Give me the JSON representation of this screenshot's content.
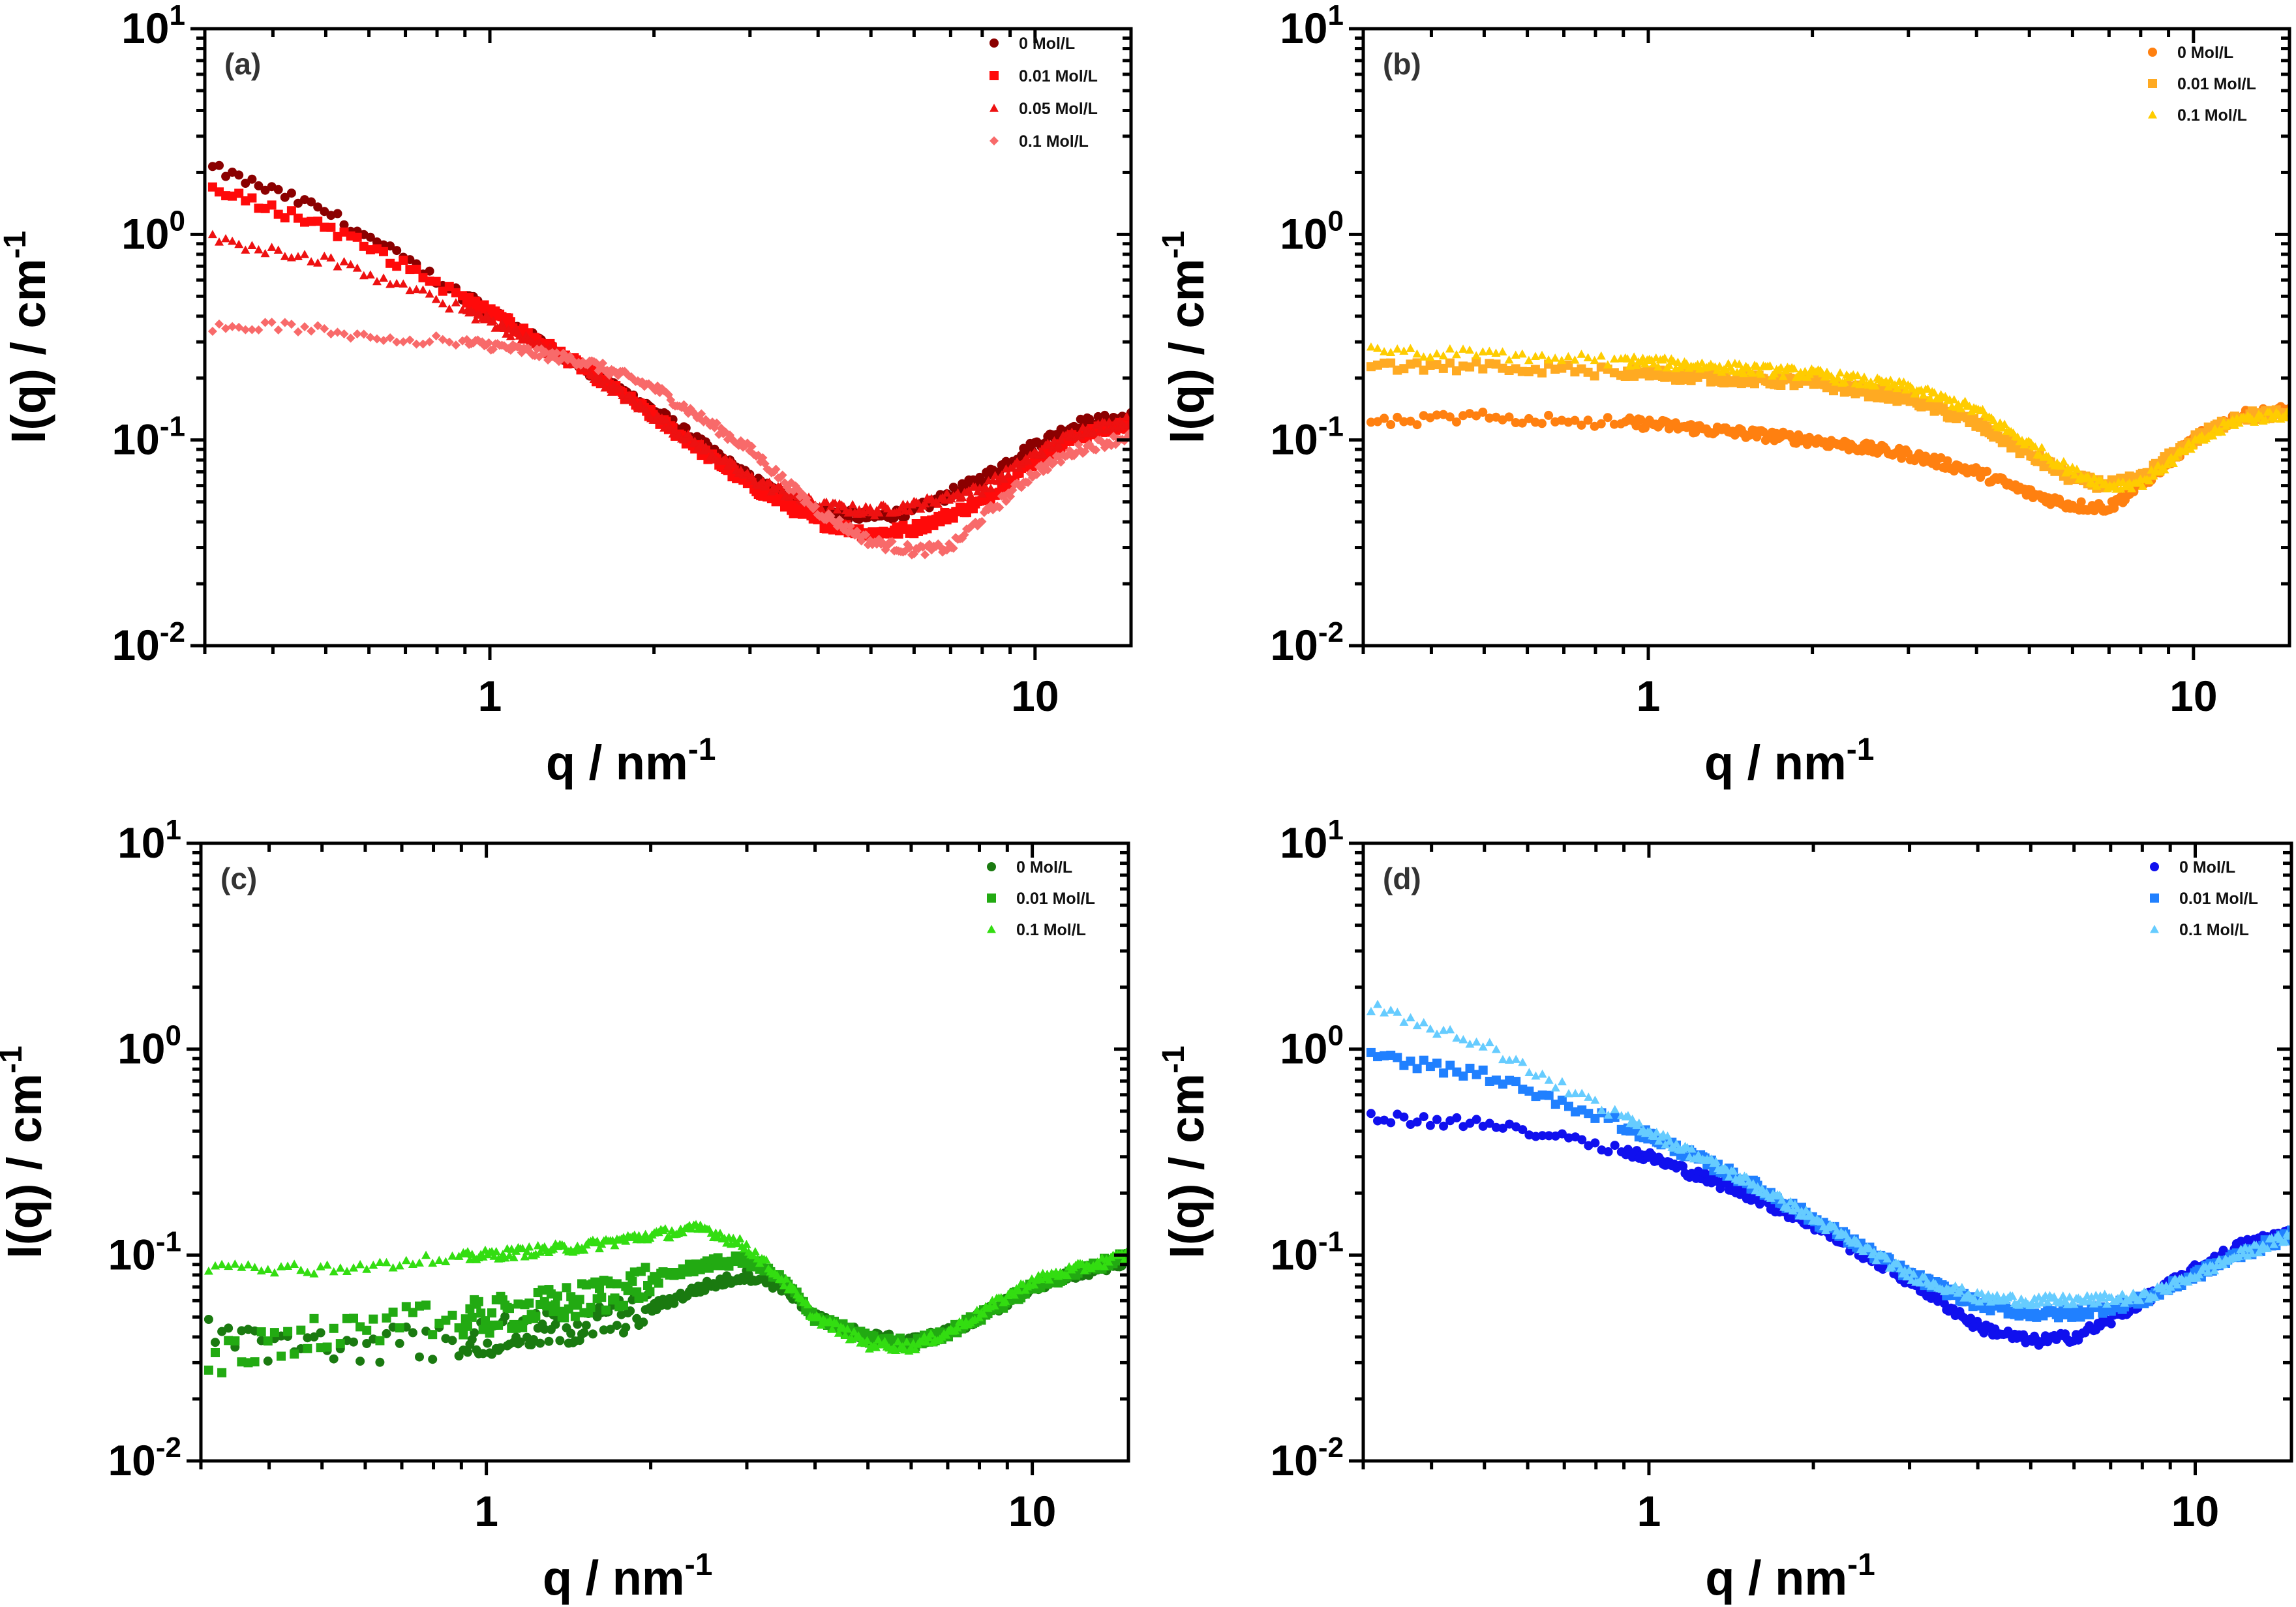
{
  "chart_data": [
    {
      "type": "scatter",
      "panel_label": "(a)",
      "xlabel": "q / nm",
      "xlabel_sup": "-1",
      "ylabel": "I(q) / cm",
      "ylabel_sup": "-1",
      "xscale": "log",
      "yscale": "log",
      "xlim": [
        0.3,
        15
      ],
      "ylim": [
        0.01,
        10
      ],
      "xticks": [
        {
          "value": 1,
          "label": "1"
        },
        {
          "value": 10,
          "label": "10"
        }
      ],
      "yticks": [
        {
          "value": 10,
          "base": "10",
          "exp": "1"
        },
        {
          "value": 1,
          "base": "10",
          "exp": "0"
        },
        {
          "value": 0.1,
          "base": "10",
          "exp": "-1"
        },
        {
          "value": 0.01,
          "base": "10",
          "exp": "-2"
        }
      ],
      "legend_position": "top-right",
      "series": [
        {
          "name": "0 Mol/L",
          "marker": "circle",
          "color": "#8b0000",
          "q": [
            0.31,
            0.5,
            0.7,
            1.0,
            1.5,
            2,
            3,
            4,
            5,
            6,
            8,
            10,
            12,
            15
          ],
          "I": [
            2.1,
            1.3,
            0.75,
            0.42,
            0.22,
            0.14,
            0.065,
            0.045,
            0.042,
            0.045,
            0.065,
            0.095,
            0.12,
            0.13
          ]
        },
        {
          "name": "0.01 Mol/L",
          "marker": "square",
          "color": "#ff0a0a",
          "q": [
            0.31,
            0.5,
            0.7,
            1.0,
            1.5,
            2,
            3,
            4,
            5,
            6,
            8,
            10,
            12,
            15
          ],
          "I": [
            1.65,
            1.1,
            0.7,
            0.42,
            0.22,
            0.13,
            0.06,
            0.04,
            0.035,
            0.037,
            0.05,
            0.08,
            0.105,
            0.12
          ]
        },
        {
          "name": "0.05 Mol/L",
          "marker": "triangle",
          "color": "#ee1111",
          "q": [
            0.31,
            0.5,
            0.7,
            1.0,
            1.5,
            2,
            3,
            4,
            5,
            6,
            8,
            10,
            12,
            15
          ],
          "I": [
            0.95,
            0.75,
            0.55,
            0.38,
            0.22,
            0.13,
            0.065,
            0.048,
            0.045,
            0.048,
            0.058,
            0.085,
            0.11,
            0.125
          ]
        },
        {
          "name": "0.1 Mol/L",
          "marker": "diamond",
          "color": "#f86a6a",
          "q": [
            0.31,
            0.4,
            0.6,
            1.0,
            1.5,
            2,
            3,
            4,
            5,
            6,
            7,
            8,
            10,
            12,
            15
          ],
          "I": [
            0.35,
            0.36,
            0.32,
            0.29,
            0.24,
            0.18,
            0.09,
            0.045,
            0.032,
            0.029,
            0.03,
            0.042,
            0.07,
            0.09,
            0.105
          ]
        }
      ]
    },
    {
      "type": "scatter",
      "panel_label": "(b)",
      "xlabel": "q / nm",
      "xlabel_sup": "-1",
      "ylabel": "I(q) / cm",
      "ylabel_sup": "-1",
      "xscale": "log",
      "yscale": "log",
      "xlim": [
        0.3,
        15
      ],
      "ylim": [
        0.01,
        10
      ],
      "xticks": [
        {
          "value": 1,
          "label": "1"
        },
        {
          "value": 10,
          "label": "10"
        }
      ],
      "yticks": [
        {
          "value": 10,
          "base": "10",
          "exp": "1"
        },
        {
          "value": 1,
          "base": "10",
          "exp": "0"
        },
        {
          "value": 0.1,
          "base": "10",
          "exp": "-1"
        },
        {
          "value": 0.01,
          "base": "10",
          "exp": "-2"
        }
      ],
      "legend_position": "top-right",
      "series": [
        {
          "name": "0 Mol/L",
          "marker": "circle",
          "color": "#ff8010",
          "q": [
            0.31,
            0.5,
            1.0,
            2,
            3,
            4,
            5,
            6,
            7,
            8,
            10,
            12,
            15
          ],
          "I": [
            0.12,
            0.13,
            0.12,
            0.1,
            0.085,
            0.07,
            0.055,
            0.048,
            0.047,
            0.06,
            0.1,
            0.13,
            0.14
          ]
        },
        {
          "name": "0.01 Mol/L",
          "marker": "square",
          "color": "#ffaa22",
          "q": [
            0.31,
            0.5,
            1.0,
            2,
            3,
            4,
            5,
            6,
            7,
            8,
            10,
            12,
            15
          ],
          "I": [
            0.23,
            0.23,
            0.21,
            0.19,
            0.16,
            0.12,
            0.085,
            0.065,
            0.06,
            0.065,
            0.1,
            0.13,
            0.135
          ]
        },
        {
          "name": "0.1 Mol/L",
          "marker": "triangle",
          "color": "#ffcc00",
          "q": [
            0.31,
            0.5,
            1.0,
            2,
            3,
            4,
            5,
            6,
            7,
            8,
            10,
            12,
            15
          ],
          "I": [
            0.27,
            0.26,
            0.24,
            0.21,
            0.18,
            0.14,
            0.095,
            0.07,
            0.06,
            0.062,
            0.095,
            0.125,
            0.135
          ]
        }
      ]
    },
    {
      "type": "scatter",
      "panel_label": "(c)",
      "xlabel": "q / nm",
      "xlabel_sup": "-1",
      "ylabel": "I(q) / cm",
      "ylabel_sup": "-1",
      "xscale": "log",
      "yscale": "log",
      "xlim": [
        0.3,
        15
      ],
      "ylim": [
        0.01,
        10
      ],
      "xticks": [
        {
          "value": 1,
          "label": "1"
        },
        {
          "value": 10,
          "label": "10"
        }
      ],
      "yticks": [
        {
          "value": 10,
          "base": "10",
          "exp": "1"
        },
        {
          "value": 1,
          "base": "10",
          "exp": "0"
        },
        {
          "value": 0.1,
          "base": "10",
          "exp": "-1"
        },
        {
          "value": 0.01,
          "base": "10",
          "exp": "-2"
        }
      ],
      "legend_position": "top-right",
      "series": [
        {
          "name": "0 Mol/L",
          "marker": "circle",
          "color": "#1a7a10",
          "q": [
            0.31,
            0.5,
            1.0,
            1.5,
            2,
            2.5,
            3,
            3.5,
            4,
            5,
            6,
            7,
            8,
            10,
            15
          ],
          "I": [
            0.04,
            0.035,
            0.04,
            0.045,
            0.055,
            0.07,
            0.08,
            0.07,
            0.05,
            0.04,
            0.038,
            0.042,
            0.05,
            0.07,
            0.095
          ]
        },
        {
          "name": "0.01 Mol/L",
          "marker": "square",
          "color": "#22aa12",
          "q": [
            0.31,
            0.5,
            1.0,
            1.5,
            2,
            2.5,
            3,
            3.5,
            4,
            5,
            6,
            7,
            8,
            10,
            15
          ],
          "I": [
            0.03,
            0.042,
            0.05,
            0.06,
            0.075,
            0.09,
            0.095,
            0.075,
            0.05,
            0.039,
            0.037,
            0.042,
            0.05,
            0.07,
            0.1
          ]
        },
        {
          "name": "0.1 Mol/L",
          "marker": "triangle",
          "color": "#33dd11",
          "q": [
            0.31,
            0.5,
            1.0,
            1.5,
            2,
            2.5,
            3,
            3.5,
            4,
            5,
            6,
            7,
            8,
            10,
            15
          ],
          "I": [
            0.088,
            0.085,
            0.1,
            0.11,
            0.125,
            0.135,
            0.11,
            0.075,
            0.05,
            0.037,
            0.036,
            0.042,
            0.052,
            0.075,
            0.1
          ]
        }
      ]
    },
    {
      "type": "scatter",
      "panel_label": "(d)",
      "xlabel": "q / nm",
      "xlabel_sup": "-1",
      "ylabel": "I(q) / cm",
      "ylabel_sup": "-1",
      "xscale": "log",
      "yscale": "log",
      "xlim": [
        0.3,
        15
      ],
      "ylim": [
        0.01,
        10
      ],
      "xticks": [
        {
          "value": 1,
          "label": "1"
        },
        {
          "value": 10,
          "label": "10"
        }
      ],
      "yticks": [
        {
          "value": 10,
          "base": "10",
          "exp": "1"
        },
        {
          "value": 1,
          "base": "10",
          "exp": "0"
        },
        {
          "value": 0.1,
          "base": "10",
          "exp": "-1"
        },
        {
          "value": 0.01,
          "base": "10",
          "exp": "-2"
        }
      ],
      "legend_position": "top-right",
      "series": [
        {
          "name": "0 Mol/L",
          "marker": "circle",
          "color": "#1010ee",
          "q": [
            0.31,
            0.5,
            0.7,
            1.0,
            1.5,
            2,
            3,
            4,
            5,
            6,
            7,
            8,
            10,
            12,
            15
          ],
          "I": [
            0.47,
            0.43,
            0.38,
            0.3,
            0.2,
            0.14,
            0.075,
            0.045,
            0.038,
            0.04,
            0.048,
            0.06,
            0.085,
            0.11,
            0.13
          ]
        },
        {
          "name": "0.01 Mol/L",
          "marker": "square",
          "color": "#2080ff",
          "q": [
            0.31,
            0.5,
            0.7,
            1.0,
            1.5,
            2,
            3,
            4,
            5,
            6,
            8,
            10,
            12,
            15
          ],
          "I": [
            0.93,
            0.75,
            0.55,
            0.38,
            0.23,
            0.15,
            0.08,
            0.058,
            0.052,
            0.052,
            0.06,
            0.08,
            0.1,
            0.125
          ]
        },
        {
          "name": "0.1 Mol/L",
          "marker": "triangle",
          "color": "#66ccff",
          "q": [
            0.31,
            0.5,
            0.7,
            1.0,
            1.5,
            2,
            3,
            4,
            5,
            6,
            8,
            10,
            12,
            15
          ],
          "I": [
            1.6,
            1.05,
            0.65,
            0.4,
            0.23,
            0.15,
            0.08,
            0.062,
            0.06,
            0.06,
            0.062,
            0.08,
            0.1,
            0.125
          ]
        }
      ]
    }
  ]
}
